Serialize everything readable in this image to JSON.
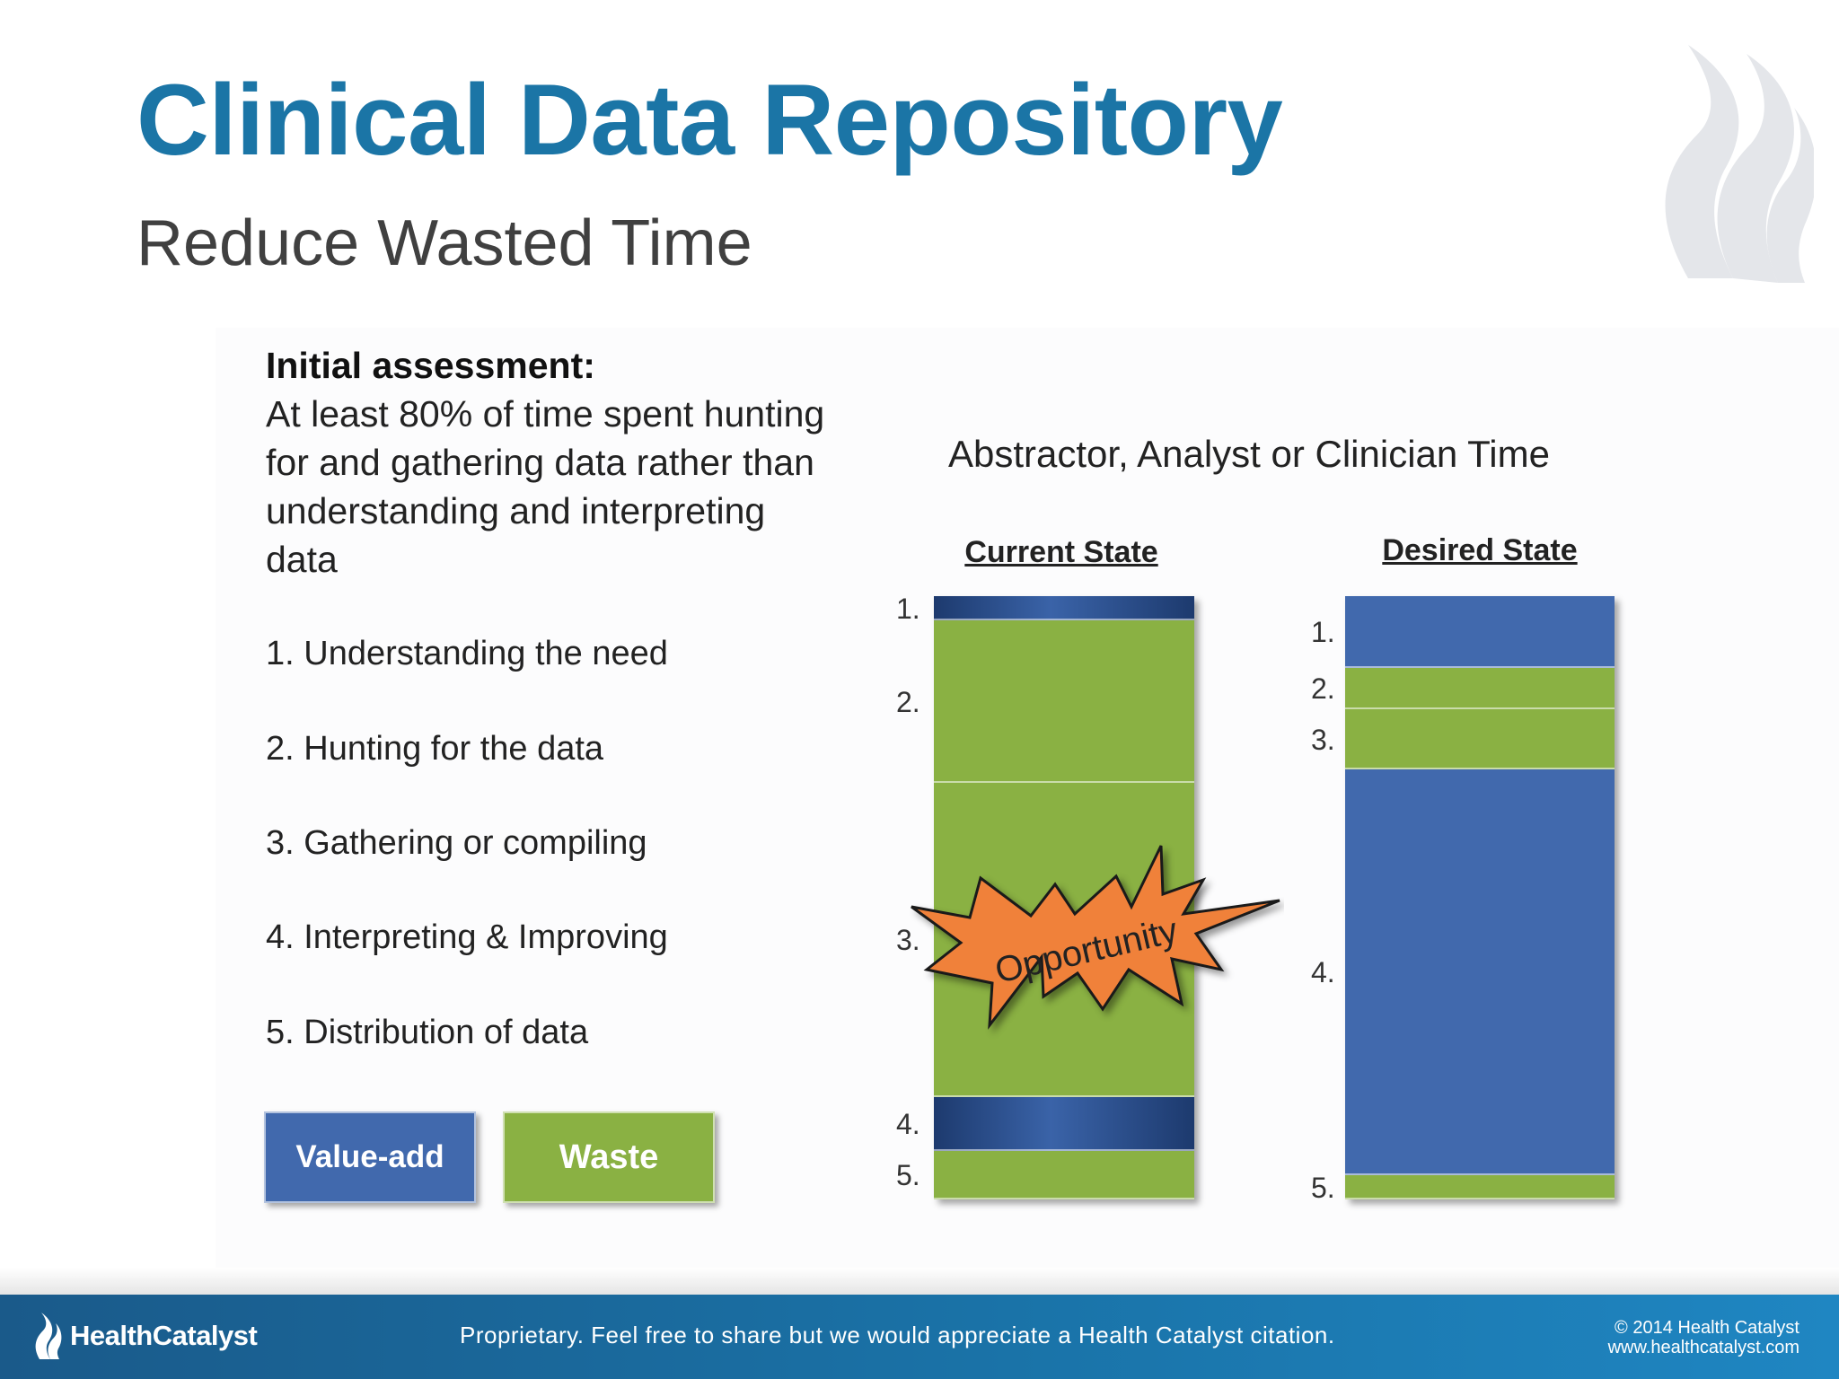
{
  "header": {
    "title": "Clinical Data Repository",
    "subtitle": "Reduce Wasted Time"
  },
  "assessment": {
    "heading": "Initial assessment:",
    "text": "At least 80% of time spent hunting for and gathering data rather than understanding and interpreting data"
  },
  "steps": [
    "1. Understanding the need",
    "2. Hunting for the data",
    "3. Gathering or compiling",
    "4. Interpreting & Improving",
    "5. Distribution of data"
  ],
  "legend": {
    "value_add": "Value-add",
    "waste": "Waste"
  },
  "chart_data": {
    "type": "bar",
    "title": "Abstractor, Analyst or Clinician Time",
    "categories": [
      "Current State",
      "Desired State"
    ],
    "series": [
      {
        "name": "1.",
        "kind": "Value-add",
        "values": [
          4,
          12
        ]
      },
      {
        "name": "2.",
        "kind": "Waste",
        "values": [
          27,
          7
        ]
      },
      {
        "name": "3.",
        "kind": "Waste",
        "values": [
          52,
          10
        ]
      },
      {
        "name": "4.",
        "kind": "Value-add",
        "values": [
          9,
          68
        ]
      },
      {
        "name": "5.",
        "kind": "Waste",
        "values": [
          8,
          4
        ]
      }
    ],
    "annotation": "Opportunity",
    "colors": {
      "value_add": "#4169ad",
      "waste": "#8ab143",
      "opportunity": "#f0813a"
    }
  },
  "footer": {
    "brand": "HealthCatalyst",
    "note": "Proprietary. Feel free to share but we would appreciate a Health Catalyst citation.",
    "copyright": "© 2014 Health Catalyst",
    "url": "www.healthcatalyst.com"
  }
}
